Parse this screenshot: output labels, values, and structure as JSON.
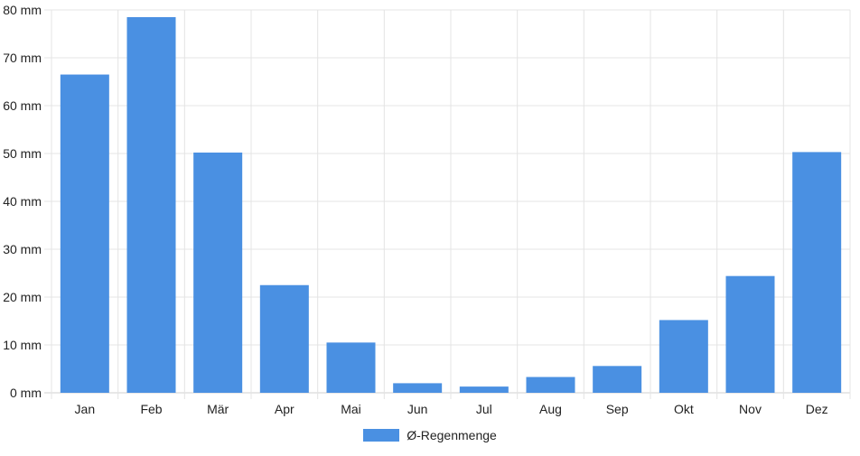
{
  "chart_data": {
    "type": "bar",
    "categories": [
      "Jan",
      "Feb",
      "Mär",
      "Apr",
      "Mai",
      "Jun",
      "Jul",
      "Aug",
      "Sep",
      "Okt",
      "Nov",
      "Dez"
    ],
    "series": [
      {
        "name": "Ø-Regenmenge",
        "color": "#4a90e2",
        "values": [
          66.5,
          78.5,
          50.2,
          22.5,
          10.5,
          2.0,
          1.3,
          3.3,
          5.6,
          15.2,
          24.4,
          50.3
        ]
      }
    ],
    "y_ticks": [
      "0 mm",
      "10 mm",
      "20 mm",
      "30 mm",
      "40 mm",
      "50 mm",
      "60 mm",
      "70 mm",
      "80 mm"
    ],
    "ylim": [
      0,
      80
    ],
    "grid": true,
    "legend_position": "bottom"
  }
}
